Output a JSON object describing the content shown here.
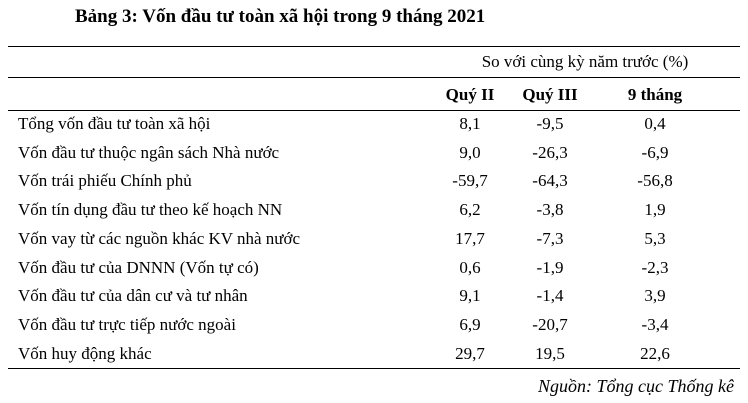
{
  "title": "Bảng 3: Vốn đầu tư toàn xã hội trong 9 tháng 2021",
  "table": {
    "group_header": "So với cùng kỳ năm trước (%)",
    "columns": [
      "Quý II",
      "Quý III",
      "9 tháng"
    ],
    "rows": [
      [
        "Tổng vốn đầu tư toàn xã hội",
        "8,1",
        "-9,5",
        "0,4"
      ],
      [
        "Vốn đầu tư thuộc ngân sách Nhà nước",
        "9,0",
        "-26,3",
        "-6,9"
      ],
      [
        "Vốn trái phiếu Chính phủ",
        "-59,7",
        "-64,3",
        "-56,8"
      ],
      [
        "Vốn tín dụng đầu tư theo kế hoạch NN",
        "6,2",
        "-3,8",
        "1,9"
      ],
      [
        "Vốn vay từ các nguồn khác KV nhà nước",
        "17,7",
        "-7,3",
        "5,3"
      ],
      [
        "Vốn đầu tư của DNNN (Vốn tự có)",
        "0,6",
        "-1,9",
        "-2,3"
      ],
      [
        "Vốn đầu tư của dân cư và tư nhân",
        "9,1",
        "-1,4",
        "3,9"
      ],
      [
        "Vốn đầu tư trực tiếp nước ngoài",
        "6,9",
        "-20,7",
        "-3,4"
      ],
      [
        "Vốn huy động khác",
        "29,7",
        "19,5",
        "22,6"
      ]
    ]
  },
  "source": "Nguồn: Tổng cục Thống kê"
}
